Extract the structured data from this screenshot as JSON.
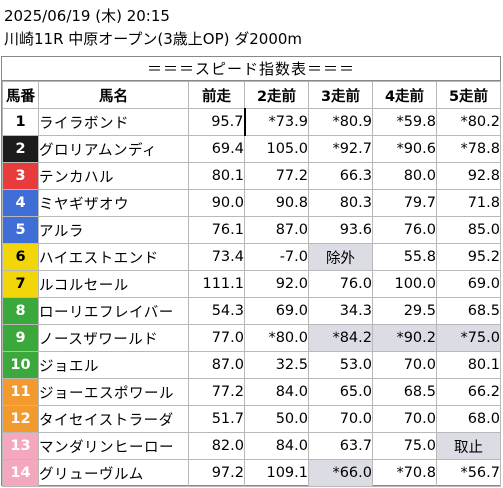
{
  "header": {
    "datetime": "2025/06/19 (木) 20:15",
    "race": "川崎11R 中原オープン(3歳上OP) ダ2000m"
  },
  "banner": "＝＝＝スピード指数表＝＝＝",
  "columns": [
    "馬番",
    "馬名",
    "前走",
    "2走前",
    "3走前",
    "4走前",
    "5走前"
  ],
  "frame_colors": {
    "1": {
      "bg": "#ffffff",
      "fg": "#000000"
    },
    "2": {
      "bg": "#1c1c1c",
      "fg": "#ffffff"
    },
    "3": {
      "bg": "#e83c3c",
      "fg": "#ffffff"
    },
    "4": {
      "bg": "#3f6fd6",
      "fg": "#ffffff"
    },
    "5": {
      "bg": "#f2d60a",
      "fg": "#000000"
    },
    "6": {
      "bg": "#3aa83a",
      "fg": "#ffffff"
    },
    "7": {
      "bg": "#f29a2e",
      "fg": "#ffffff"
    },
    "8": {
      "bg": "#f4a7bd",
      "fg": "#ffffff"
    }
  },
  "gray_cell_color": "#dcdce4",
  "rows": [
    {
      "num": "1",
      "frame": 1,
      "name": "ライラボンド",
      "vals": [
        "95.7",
        "*73.9",
        "*80.9",
        "*59.8",
        "*80.2"
      ],
      "gray": [],
      "center": []
    },
    {
      "num": "2",
      "frame": 2,
      "name": "グロリアムンディ",
      "vals": [
        "69.4",
        "105.0",
        "*92.7",
        "*90.6",
        "*78.8"
      ],
      "gray": [],
      "center": []
    },
    {
      "num": "3",
      "frame": 3,
      "name": "テンカハル",
      "vals": [
        "80.1",
        "77.2",
        "66.3",
        "80.0",
        "92.8"
      ],
      "gray": [],
      "center": []
    },
    {
      "num": "4",
      "frame": 4,
      "name": "ミヤギザオウ",
      "vals": [
        "90.0",
        "90.8",
        "80.3",
        "79.7",
        "71.8"
      ],
      "gray": [],
      "center": []
    },
    {
      "num": "5",
      "frame": 4,
      "name": "アルラ",
      "vals": [
        "76.1",
        "87.0",
        "93.6",
        "76.0",
        "85.0"
      ],
      "gray": [],
      "center": []
    },
    {
      "num": "6",
      "frame": 5,
      "name": "ハイエストエンド",
      "vals": [
        "73.4",
        "-7.0",
        "除外",
        "55.8",
        "95.2"
      ],
      "gray": [
        2
      ],
      "center": [
        2
      ]
    },
    {
      "num": "7",
      "frame": 5,
      "name": "ルコルセール",
      "vals": [
        "111.1",
        "92.0",
        "76.0",
        "100.0",
        "69.0"
      ],
      "gray": [],
      "center": []
    },
    {
      "num": "8",
      "frame": 6,
      "name": "ローリエフレイバー",
      "vals": [
        "54.3",
        "69.0",
        "34.3",
        "29.5",
        "68.5"
      ],
      "gray": [],
      "center": []
    },
    {
      "num": "9",
      "frame": 6,
      "name": "ノースザワールド",
      "vals": [
        "77.0",
        "*80.0",
        "*84.2",
        "*90.2",
        "*75.0"
      ],
      "gray": [
        2,
        3,
        4
      ],
      "center": []
    },
    {
      "num": "10",
      "frame": 6,
      "name": "ジョエル",
      "vals": [
        "87.0",
        "32.5",
        "53.0",
        "70.0",
        "80.1"
      ],
      "gray": [],
      "center": []
    },
    {
      "num": "11",
      "frame": 7,
      "name": "ジョーエスポワール",
      "vals": [
        "77.2",
        "84.0",
        "65.0",
        "68.5",
        "66.2"
      ],
      "gray": [],
      "center": []
    },
    {
      "num": "12",
      "frame": 7,
      "name": "タイセイストラーダ",
      "vals": [
        "51.7",
        "50.0",
        "70.0",
        "70.0",
        "68.0"
      ],
      "gray": [],
      "center": []
    },
    {
      "num": "13",
      "frame": 8,
      "name": "マンダリンヒーロー",
      "vals": [
        "82.0",
        "84.0",
        "63.7",
        "75.0",
        "取止"
      ],
      "gray": [
        4
      ],
      "center": [
        4
      ]
    },
    {
      "num": "14",
      "frame": 8,
      "name": "グリューヴルム",
      "vals": [
        "97.2",
        "109.1",
        "*66.0",
        "*70.8",
        "*56.7"
      ],
      "gray": [
        2
      ],
      "center": []
    }
  ]
}
